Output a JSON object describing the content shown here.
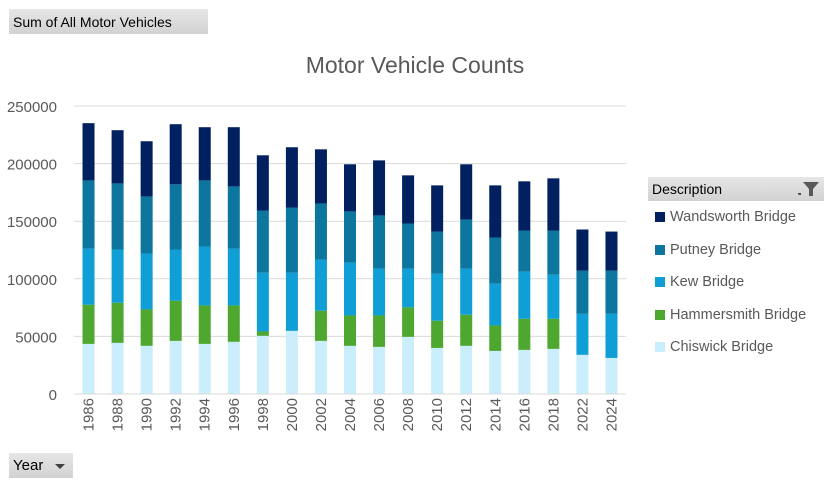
{
  "field_buttons": {
    "values": "Sum of All  Motor Vehicles",
    "axis": "Year",
    "legend": "Description"
  },
  "chart_data": {
    "type": "bar",
    "stacked": true,
    "title": "Motor Vehicle Counts",
    "xlabel": "",
    "ylabel": "",
    "ylim": [
      0,
      250000
    ],
    "yticks": [
      "0",
      "50000",
      "100000",
      "150000",
      "200000",
      "250000"
    ],
    "grid": true,
    "legend_position": "right",
    "categories": [
      "1986",
      "1988",
      "1990",
      "1992",
      "1994",
      "1996",
      "1998",
      "2000",
      "2002",
      "2004",
      "2006",
      "2008",
      "2010",
      "2012",
      "2014",
      "2016",
      "2018",
      "2022",
      "2024"
    ],
    "series": [
      {
        "name": "Chiswick Bridge",
        "color": "#caeefb",
        "values": [
          43500,
          44400,
          41800,
          46100,
          43500,
          45300,
          50500,
          54800,
          46100,
          41800,
          40900,
          49600,
          40000,
          41800,
          37400,
          38300,
          39200,
          34000,
          31300
        ]
      },
      {
        "name": "Hammersmith Bridge",
        "color": "#4ea72e",
        "values": [
          34000,
          34800,
          31600,
          34900,
          33400,
          31600,
          3800,
          0,
          26200,
          26400,
          27300,
          25600,
          23600,
          27000,
          22100,
          27000,
          26100,
          0,
          0
        ]
      },
      {
        "name": "Kew Bridge",
        "color": "#0f9ed5",
        "values": [
          48700,
          46200,
          48500,
          44400,
          51100,
          49300,
          51000,
          50500,
          44400,
          45800,
          40600,
          33600,
          40900,
          40000,
          36300,
          40900,
          38300,
          35600,
          38300
        ]
      },
      {
        "name": "Putney Bridge",
        "color": "#0c769e",
        "values": [
          59200,
          57400,
          49600,
          56600,
          57400,
          54000,
          54000,
          56600,
          48700,
          44500,
          46200,
          39200,
          36500,
          42700,
          40000,
          35700,
          38300,
          37500,
          37500
        ]
      },
      {
        "name": "Wandsworth Bridge",
        "color": "#002060",
        "values": [
          49700,
          46200,
          47900,
          52200,
          46200,
          51400,
          47900,
          52300,
          47000,
          40900,
          47800,
          41800,
          40100,
          47900,
          45300,
          42700,
          45300,
          35700,
          33900
        ]
      }
    ]
  }
}
